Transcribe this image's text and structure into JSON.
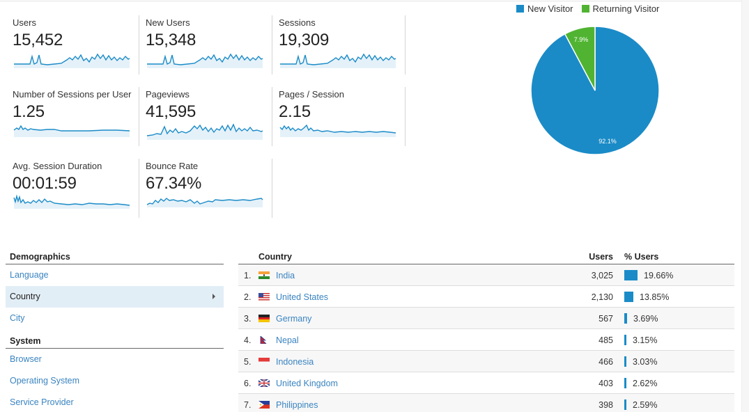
{
  "metrics": [
    {
      "label": "Users",
      "value": "15,452"
    },
    {
      "label": "New Users",
      "value": "15,348"
    },
    {
      "label": "Sessions",
      "value": "19,309"
    },
    {
      "label": "Number of Sessions per User",
      "value": "1.25"
    },
    {
      "label": "Pageviews",
      "value": "41,595"
    },
    {
      "label": "Pages / Session",
      "value": "2.15"
    },
    {
      "label": "Avg. Session Duration",
      "value": "00:01:59"
    },
    {
      "label": "Bounce Rate",
      "value": "67.34%"
    }
  ],
  "colors": {
    "accent": "#1a8bc7",
    "returning": "#50b432",
    "link": "#3a84c0",
    "selected_bg": "#e2eef6"
  },
  "chart_data": {
    "type": "pie",
    "title": "",
    "legend_position": "top",
    "categories": [
      "New Visitor",
      "Returning Visitor"
    ],
    "values": [
      92.1,
      7.9
    ],
    "labels": [
      "92.1%",
      "7.9%"
    ],
    "colors": [
      "#1a8bc7",
      "#50b432"
    ]
  },
  "legend": {
    "new_visitor": "New Visitor",
    "returning_visitor": "Returning Visitor"
  },
  "menu": {
    "sections": [
      {
        "title": "Demographics",
        "items": [
          "Language",
          "Country",
          "City"
        ]
      },
      {
        "title": "System",
        "items": [
          "Browser",
          "Operating System",
          "Service Provider"
        ]
      }
    ],
    "selected": "Country"
  },
  "table": {
    "headers": {
      "country": "Country",
      "users": "Users",
      "pct_users": "% Users"
    },
    "rows": [
      {
        "idx": "1.",
        "flag": "flag-india",
        "country": "India",
        "users": "3,025",
        "pct": "19.66%",
        "pct_value": 19.66
      },
      {
        "idx": "2.",
        "flag": "flag-united-states",
        "country": "United States",
        "users": "2,130",
        "pct": "13.85%",
        "pct_value": 13.85
      },
      {
        "idx": "3.",
        "flag": "flag-germany",
        "country": "Germany",
        "users": "567",
        "pct": "3.69%",
        "pct_value": 3.69
      },
      {
        "idx": "4.",
        "flag": "flag-nepal",
        "country": "Nepal",
        "users": "485",
        "pct": "3.15%",
        "pct_value": 3.15
      },
      {
        "idx": "5.",
        "flag": "flag-indonesia",
        "country": "Indonesia",
        "users": "466",
        "pct": "3.03%",
        "pct_value": 3.03
      },
      {
        "idx": "6.",
        "flag": "flag-united-kingdom",
        "country": "United Kingdom",
        "users": "403",
        "pct": "2.62%",
        "pct_value": 2.62
      },
      {
        "idx": "7.",
        "flag": "flag-philippines",
        "country": "Philippines",
        "users": "398",
        "pct": "2.59%",
        "pct_value": 2.59
      }
    ]
  }
}
